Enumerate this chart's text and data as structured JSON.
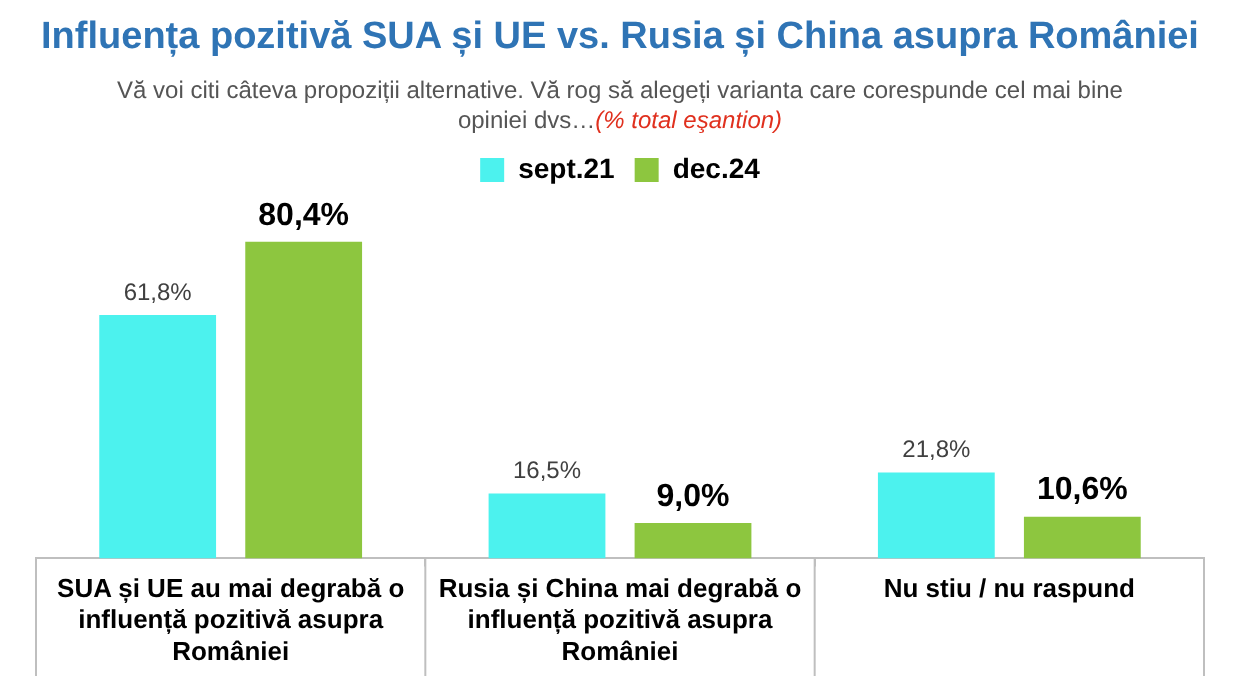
{
  "chart_data": {
    "type": "bar",
    "title": "Influența pozitivă SUA și UE vs. Rusia și China asupra României",
    "subtitle": "Vă voi citi câteva propoziții alternative. Vă rog să alegeți varianta care corespunde cel mai bine opiniei dvs…",
    "annotations": [
      "(% total eşantion)"
    ],
    "categories": [
      "SUA și UE au mai degrabă o influență pozitivă asupra României",
      "Rusia și China mai degrabă o influență pozitivă asupra României",
      "Nu stiu / nu raspund"
    ],
    "series": [
      {
        "name": "sept.21",
        "color": "#4cf2ee",
        "values": [
          61.8,
          16.5,
          21.8
        ],
        "value_labels": [
          "61,8%",
          "16,5%",
          "21,8%"
        ]
      },
      {
        "name": "dec.24",
        "color": "#8dc63f",
        "values": [
          80.4,
          9.0,
          10.6
        ],
        "value_labels": [
          "80,4%",
          "9,0%",
          "10,6%"
        ]
      }
    ],
    "legend": "top",
    "grid": false
  }
}
